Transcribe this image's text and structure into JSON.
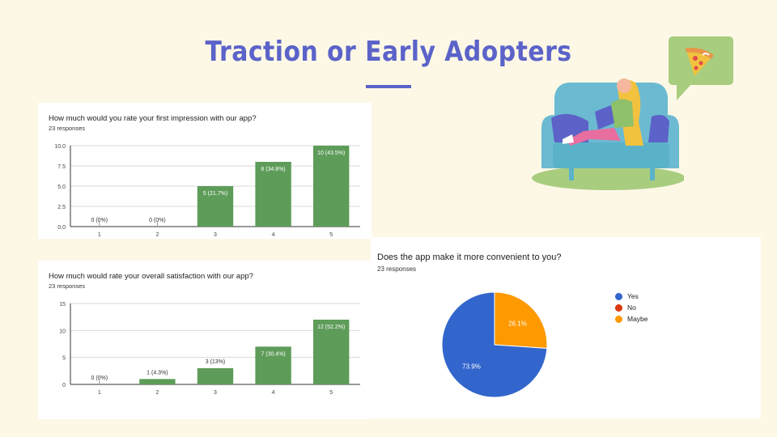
{
  "slide": {
    "title": "Traction or Early Adopters"
  },
  "charts": {
    "first_impression": {
      "question": "How much would you rate your first impression with our app?",
      "responses": "23 responses"
    },
    "satisfaction": {
      "question": "How much would rate your overall satisfaction with our app?",
      "responses": "23 responses"
    },
    "convenience": {
      "question": "Does the app make it more convenient to you?",
      "responses": "23 responses"
    }
  },
  "icons": {
    "illustration": "woman-on-couch-with-laptop-illustration",
    "bubble": "pizza-speech-bubble-icon"
  },
  "chart_data": [
    {
      "type": "bar",
      "title": "How much would you rate your first impression with our app?",
      "categories": [
        "1",
        "2",
        "3",
        "4",
        "5"
      ],
      "values": [
        0,
        0,
        5,
        8,
        10
      ],
      "data_labels": [
        "0 (0%)",
        "0 (0%)",
        "5 (21.7%)",
        "8 (34.8%)",
        "10 (43.5%)"
      ],
      "y_ticks": [
        "0.0",
        "2.5",
        "5.0",
        "7.5",
        "10.0"
      ],
      "ylim": [
        0,
        10
      ],
      "grid": true,
      "color": "#5e9c59"
    },
    {
      "type": "bar",
      "title": "How much would rate your overall satisfaction with our app?",
      "categories": [
        "1",
        "2",
        "3",
        "4",
        "5"
      ],
      "values": [
        0,
        1,
        3,
        7,
        12
      ],
      "data_labels": [
        "0 (0%)",
        "1 (4.3%)",
        "3 (13%)",
        "7 (30.4%)",
        "12 (52.2%)"
      ],
      "y_ticks": [
        "0",
        "5",
        "10",
        "15"
      ],
      "ylim": [
        0,
        15
      ],
      "grid": true,
      "color": "#5e9c59"
    },
    {
      "type": "pie",
      "title": "Does the app make it more convenient to you?",
      "labels": [
        "Yes",
        "No",
        "Maybe"
      ],
      "values": [
        73.9,
        0,
        26.1
      ],
      "data_labels": [
        "73.9%",
        "",
        "26.1%"
      ],
      "colors": [
        "#3366cc",
        "#dc3912",
        "#ff9900"
      ],
      "legend": "right"
    }
  ]
}
